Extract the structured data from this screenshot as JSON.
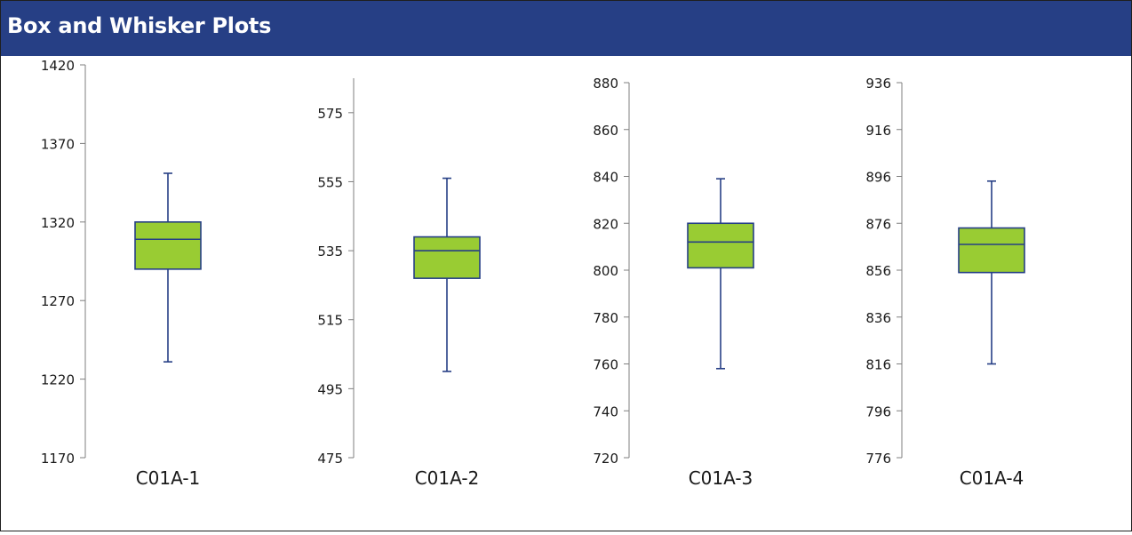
{
  "header": {
    "title": "Box and Whisker Plots"
  },
  "colors": {
    "header_bg": "#263f85",
    "box_fill": "#99cc33",
    "box_stroke": "#263f85",
    "whisker": "#263f85",
    "axis": "#7f7f7f",
    "text": "#1a1a1a"
  },
  "chart_data": [
    {
      "type": "box",
      "category": "C01A-1",
      "yticks": [
        1170,
        1220,
        1270,
        1320,
        1370,
        1420
      ],
      "ylim": [
        1170,
        1420
      ],
      "min": 1231,
      "q1": 1290,
      "median": 1309,
      "q3": 1320,
      "max": 1351
    },
    {
      "type": "box",
      "category": "C01A-2",
      "yticks": [
        475,
        495,
        515,
        535,
        555,
        575
      ],
      "ylim": [
        475,
        585
      ],
      "min": 500,
      "q1": 527,
      "median": 535,
      "q3": 539,
      "max": 556
    },
    {
      "type": "box",
      "category": "C01A-3",
      "yticks": [
        720,
        740,
        760,
        780,
        800,
        820,
        840,
        860,
        880
      ],
      "ylim": [
        720,
        880
      ],
      "min": 758,
      "q1": 801,
      "median": 812,
      "q3": 820,
      "max": 839
    },
    {
      "type": "box",
      "category": "C01A-4",
      "yticks": [
        776,
        796,
        816,
        836,
        856,
        876,
        896,
        916,
        936
      ],
      "ylim": [
        776,
        936
      ],
      "min": 816,
      "q1": 855,
      "median": 867,
      "q3": 874,
      "max": 894
    }
  ]
}
